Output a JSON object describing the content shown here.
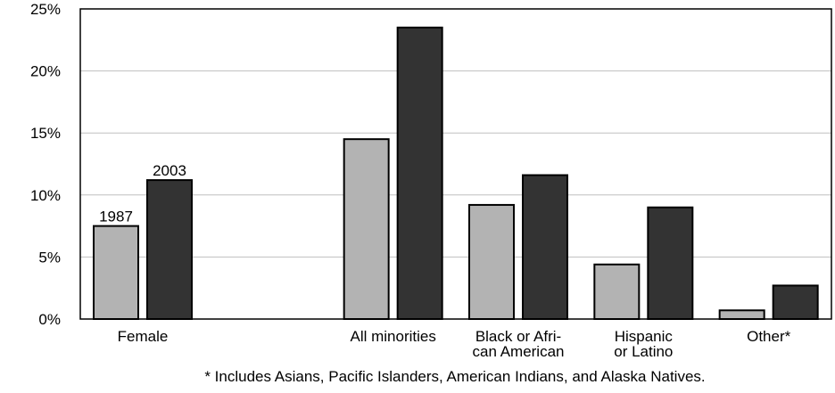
{
  "chart_data": {
    "type": "bar",
    "categories": [
      [
        "Female"
      ],
      [],
      [
        "All minorities"
      ],
      [
        "Black or Afri-",
        "can American"
      ],
      [
        "Hispanic",
        "or Latino"
      ],
      [
        "Other*"
      ]
    ],
    "series": [
      {
        "name": "1987",
        "color": "#b3b3b3",
        "values": [
          7.5,
          null,
          14.5,
          9.2,
          4.4,
          0.7
        ]
      },
      {
        "name": "2003",
        "color": "#333333",
        "values": [
          11.2,
          null,
          23.5,
          11.6,
          9.0,
          2.7
        ]
      }
    ],
    "ylim": [
      0,
      25
    ],
    "yticks": [
      "0%",
      "5%",
      "10%",
      "15%",
      "20%",
      "25%"
    ],
    "ytick_values": [
      0,
      5,
      10,
      15,
      20,
      25
    ],
    "grid": true,
    "footnote": "* Includes Asians, Pacific Islanders, American Indians, and Alaska Natives."
  }
}
